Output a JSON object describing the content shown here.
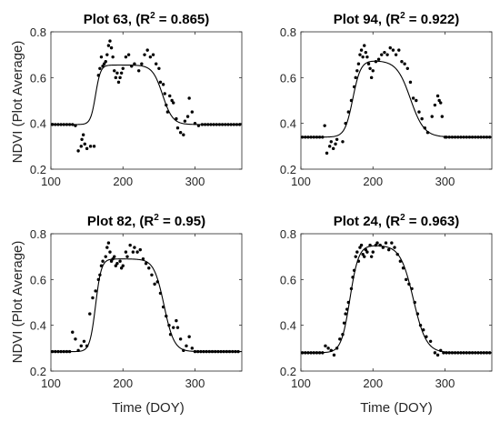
{
  "figure": {
    "shared_ylabel": "NDVI (Plot Average)",
    "shared_xlabel": "Time (DOY)"
  },
  "chart_data": [
    {
      "type": "scatter",
      "title_prefix": "Plot 63, (R",
      "title_sup": "2",
      "title_suffix": " = 0.865)",
      "xlabel": "Time (DOY)",
      "ylabel": "NDVI (Plot Average)",
      "xlim": [
        100,
        365
      ],
      "ylim": [
        0.2,
        0.8
      ],
      "xticks": [
        100,
        200,
        300
      ],
      "yticks": [
        0.2,
        0.4,
        0.6,
        0.8
      ],
      "xtick_labels": [
        "100",
        "200",
        "300"
      ],
      "ytick_labels": [
        "0.2",
        "0.4",
        "0.6",
        "0.8"
      ],
      "grid": false,
      "fit": {
        "base": 0.395,
        "plateau": 0.655,
        "green_up_doy": 162,
        "rise_width": 3.5,
        "senescence_doy": 255,
        "fall_width": 7
      },
      "points": [
        [
          102,
          0.395
        ],
        [
          106,
          0.395
        ],
        [
          110,
          0.395
        ],
        [
          114,
          0.395
        ],
        [
          118,
          0.395
        ],
        [
          122,
          0.395
        ],
        [
          126,
          0.395
        ],
        [
          130,
          0.395
        ],
        [
          134,
          0.39
        ],
        [
          138,
          0.28
        ],
        [
          142,
          0.3
        ],
        [
          143,
          0.33
        ],
        [
          145,
          0.35
        ],
        [
          147,
          0.31
        ],
        [
          150,
          0.29
        ],
        [
          155,
          0.3
        ],
        [
          160,
          0.3
        ],
        [
          166,
          0.61
        ],
        [
          168,
          0.64
        ],
        [
          170,
          0.69
        ],
        [
          172,
          0.65
        ],
        [
          174,
          0.66
        ],
        [
          176,
          0.67
        ],
        [
          178,
          0.7
        ],
        [
          180,
          0.74
        ],
        [
          182,
          0.76
        ],
        [
          184,
          0.73
        ],
        [
          186,
          0.69
        ],
        [
          188,
          0.63
        ],
        [
          190,
          0.6
        ],
        [
          192,
          0.62
        ],
        [
          194,
          0.58
        ],
        [
          196,
          0.6
        ],
        [
          198,
          0.62
        ],
        [
          200,
          0.64
        ],
        [
          204,
          0.69
        ],
        [
          208,
          0.7
        ],
        [
          212,
          0.65
        ],
        [
          216,
          0.66
        ],
        [
          222,
          0.63
        ],
        [
          226,
          0.66
        ],
        [
          230,
          0.7
        ],
        [
          234,
          0.72
        ],
        [
          238,
          0.69
        ],
        [
          242,
          0.7
        ],
        [
          246,
          0.66
        ],
        [
          250,
          0.64
        ],
        [
          252,
          0.58
        ],
        [
          256,
          0.57
        ],
        [
          258,
          0.53
        ],
        [
          260,
          0.48
        ],
        [
          262,
          0.45
        ],
        [
          265,
          0.52
        ],
        [
          268,
          0.5
        ],
        [
          270,
          0.49
        ],
        [
          274,
          0.42
        ],
        [
          276,
          0.38
        ],
        [
          280,
          0.36
        ],
        [
          284,
          0.35
        ],
        [
          286,
          0.41
        ],
        [
          290,
          0.43
        ],
        [
          292,
          0.51
        ],
        [
          296,
          0.45
        ],
        [
          300,
          0.4
        ],
        [
          305,
          0.39
        ],
        [
          310,
          0.395
        ],
        [
          314,
          0.395
        ],
        [
          318,
          0.395
        ],
        [
          322,
          0.395
        ],
        [
          326,
          0.395
        ],
        [
          330,
          0.395
        ],
        [
          334,
          0.395
        ],
        [
          338,
          0.395
        ],
        [
          342,
          0.395
        ],
        [
          346,
          0.395
        ],
        [
          350,
          0.395
        ],
        [
          354,
          0.395
        ],
        [
          358,
          0.395
        ],
        [
          362,
          0.395
        ]
      ]
    },
    {
      "type": "scatter",
      "title_prefix": "Plot 94, (R",
      "title_sup": "2",
      "title_suffix": " = 0.922)",
      "xlabel": "Time (DOY)",
      "ylabel": "NDVI (Plot Average)",
      "xlim": [
        100,
        365
      ],
      "ylim": [
        0.2,
        0.8
      ],
      "xticks": [
        100,
        200,
        300
      ],
      "yticks": [
        0.2,
        0.4,
        0.6,
        0.8
      ],
      "xtick_labels": [
        "100",
        "200",
        "300"
      ],
      "ytick_labels": [
        "0.2",
        "0.4",
        "0.6",
        "0.8"
      ],
      "grid": false,
      "fit": {
        "base": 0.34,
        "plateau": 0.675,
        "green_up_doy": 172,
        "rise_width": 5.5,
        "senescence_doy": 252,
        "fall_width": 9.5
      },
      "points": [
        [
          102,
          0.34
        ],
        [
          106,
          0.34
        ],
        [
          110,
          0.34
        ],
        [
          114,
          0.34
        ],
        [
          118,
          0.34
        ],
        [
          122,
          0.34
        ],
        [
          126,
          0.34
        ],
        [
          130,
          0.34
        ],
        [
          133,
          0.39
        ],
        [
          136,
          0.27
        ],
        [
          140,
          0.3
        ],
        [
          142,
          0.32
        ],
        [
          145,
          0.29
        ],
        [
          148,
          0.31
        ],
        [
          150,
          0.33
        ],
        [
          158,
          0.32
        ],
        [
          162,
          0.4
        ],
        [
          166,
          0.45
        ],
        [
          170,
          0.5
        ],
        [
          174,
          0.56
        ],
        [
          176,
          0.6
        ],
        [
          178,
          0.63
        ],
        [
          180,
          0.66
        ],
        [
          182,
          0.7
        ],
        [
          184,
          0.72
        ],
        [
          186,
          0.69
        ],
        [
          188,
          0.74
        ],
        [
          190,
          0.71
        ],
        [
          192,
          0.69
        ],
        [
          194,
          0.66
        ],
        [
          196,
          0.64
        ],
        [
          198,
          0.6
        ],
        [
          200,
          0.63
        ],
        [
          204,
          0.67
        ],
        [
          208,
          0.68
        ],
        [
          212,
          0.7
        ],
        [
          216,
          0.71
        ],
        [
          220,
          0.7
        ],
        [
          224,
          0.73
        ],
        [
          228,
          0.72
        ],
        [
          232,
          0.7
        ],
        [
          236,
          0.72
        ],
        [
          240,
          0.67
        ],
        [
          244,
          0.66
        ],
        [
          248,
          0.64
        ],
        [
          252,
          0.58
        ],
        [
          256,
          0.51
        ],
        [
          260,
          0.5
        ],
        [
          264,
          0.45
        ],
        [
          268,
          0.42
        ],
        [
          272,
          0.38
        ],
        [
          276,
          0.36
        ],
        [
          282,
          0.43
        ],
        [
          286,
          0.48
        ],
        [
          290,
          0.52
        ],
        [
          292,
          0.5
        ],
        [
          294,
          0.49
        ],
        [
          296,
          0.43
        ],
        [
          300,
          0.34
        ],
        [
          302,
          0.34
        ],
        [
          306,
          0.34
        ],
        [
          310,
          0.34
        ],
        [
          314,
          0.34
        ],
        [
          318,
          0.34
        ],
        [
          322,
          0.34
        ],
        [
          326,
          0.34
        ],
        [
          330,
          0.34
        ],
        [
          334,
          0.34
        ],
        [
          338,
          0.34
        ],
        [
          342,
          0.34
        ],
        [
          346,
          0.34
        ],
        [
          350,
          0.34
        ],
        [
          354,
          0.34
        ],
        [
          358,
          0.34
        ],
        [
          362,
          0.34
        ]
      ]
    },
    {
      "type": "scatter",
      "title_prefix": "Plot 82, (R",
      "title_sup": "2",
      "title_suffix": " = 0.95)",
      "xlabel": "Time (DOY)",
      "ylabel": "NDVI (Plot Average)",
      "xlim": [
        100,
        365
      ],
      "ylim": [
        0.2,
        0.8
      ],
      "xticks": [
        100,
        200,
        300
      ],
      "yticks": [
        0.2,
        0.4,
        0.6,
        0.8
      ],
      "xtick_labels": [
        "100",
        "200",
        "300"
      ],
      "ytick_labels": [
        "0.2",
        "0.4",
        "0.6",
        "0.8"
      ],
      "grid": false,
      "fit": {
        "base": 0.285,
        "plateau": 0.69,
        "green_up_doy": 162,
        "rise_width": 4,
        "senescence_doy": 257,
        "fall_width": 7
      },
      "points": [
        [
          102,
          0.285
        ],
        [
          106,
          0.285
        ],
        [
          110,
          0.285
        ],
        [
          114,
          0.285
        ],
        [
          118,
          0.285
        ],
        [
          122,
          0.285
        ],
        [
          126,
          0.285
        ],
        [
          130,
          0.37
        ],
        [
          134,
          0.34
        ],
        [
          138,
          0.29
        ],
        [
          142,
          0.31
        ],
        [
          146,
          0.33
        ],
        [
          150,
          0.31
        ],
        [
          154,
          0.45
        ],
        [
          158,
          0.52
        ],
        [
          162,
          0.55
        ],
        [
          166,
          0.6
        ],
        [
          168,
          0.62
        ],
        [
          170,
          0.66
        ],
        [
          172,
          0.68
        ],
        [
          176,
          0.7
        ],
        [
          178,
          0.74
        ],
        [
          180,
          0.76
        ],
        [
          182,
          0.72
        ],
        [
          184,
          0.68
        ],
        [
          186,
          0.69
        ],
        [
          188,
          0.7
        ],
        [
          190,
          0.66
        ],
        [
          192,
          0.67
        ],
        [
          196,
          0.68
        ],
        [
          198,
          0.65
        ],
        [
          200,
          0.66
        ],
        [
          204,
          0.72
        ],
        [
          206,
          0.7
        ],
        [
          210,
          0.75
        ],
        [
          214,
          0.72
        ],
        [
          216,
          0.74
        ],
        [
          220,
          0.72
        ],
        [
          224,
          0.73
        ],
        [
          228,
          0.69
        ],
        [
          232,
          0.67
        ],
        [
          236,
          0.65
        ],
        [
          240,
          0.62
        ],
        [
          244,
          0.58
        ],
        [
          248,
          0.59
        ],
        [
          252,
          0.54
        ],
        [
          256,
          0.48
        ],
        [
          260,
          0.44
        ],
        [
          264,
          0.4
        ],
        [
          266,
          0.36
        ],
        [
          270,
          0.39
        ],
        [
          274,
          0.42
        ],
        [
          276,
          0.39
        ],
        [
          280,
          0.34
        ],
        [
          284,
          0.29
        ],
        [
          288,
          0.31
        ],
        [
          292,
          0.35
        ],
        [
          296,
          0.3
        ],
        [
          300,
          0.285
        ],
        [
          304,
          0.285
        ],
        [
          308,
          0.285
        ],
        [
          312,
          0.285
        ],
        [
          316,
          0.285
        ],
        [
          320,
          0.285
        ],
        [
          324,
          0.285
        ],
        [
          328,
          0.285
        ],
        [
          332,
          0.285
        ],
        [
          336,
          0.285
        ],
        [
          340,
          0.285
        ],
        [
          344,
          0.285
        ],
        [
          348,
          0.285
        ],
        [
          352,
          0.285
        ],
        [
          356,
          0.285
        ],
        [
          360,
          0.285
        ]
      ]
    },
    {
      "type": "scatter",
      "title_prefix": "Plot 24, (R",
      "title_sup": "2",
      "title_suffix": " = 0.963)",
      "xlabel": "Time (DOY)",
      "ylabel": "NDVI (Plot Average)",
      "xlim": [
        100,
        365
      ],
      "ylim": [
        0.2,
        0.8
      ],
      "xticks": [
        100,
        200,
        300
      ],
      "yticks": [
        0.2,
        0.4,
        0.6,
        0.8
      ],
      "xtick_labels": [
        "100",
        "200",
        "300"
      ],
      "ytick_labels": [
        "0.2",
        "0.4",
        "0.6",
        "0.8"
      ],
      "grid": false,
      "fit": {
        "base": 0.28,
        "plateau": 0.75,
        "green_up_doy": 168,
        "rise_width": 6,
        "senescence_doy": 256,
        "fall_width": 9
      },
      "points": [
        [
          102,
          0.28
        ],
        [
          106,
          0.28
        ],
        [
          110,
          0.28
        ],
        [
          114,
          0.28
        ],
        [
          118,
          0.28
        ],
        [
          122,
          0.28
        ],
        [
          126,
          0.28
        ],
        [
          130,
          0.28
        ],
        [
          134,
          0.31
        ],
        [
          138,
          0.3
        ],
        [
          142,
          0.29
        ],
        [
          146,
          0.27
        ],
        [
          150,
          0.3
        ],
        [
          154,
          0.34
        ],
        [
          158,
          0.36
        ],
        [
          160,
          0.41
        ],
        [
          162,
          0.45
        ],
        [
          164,
          0.47
        ],
        [
          166,
          0.5
        ],
        [
          170,
          0.56
        ],
        [
          172,
          0.61
        ],
        [
          174,
          0.64
        ],
        [
          176,
          0.7
        ],
        [
          178,
          0.72
        ],
        [
          180,
          0.68
        ],
        [
          182,
          0.74
        ],
        [
          184,
          0.75
        ],
        [
          186,
          0.71
        ],
        [
          188,
          0.7
        ],
        [
          190,
          0.73
        ],
        [
          192,
          0.72
        ],
        [
          196,
          0.75
        ],
        [
          198,
          0.7
        ],
        [
          200,
          0.72
        ],
        [
          204,
          0.75
        ],
        [
          206,
          0.76
        ],
        [
          210,
          0.75
        ],
        [
          214,
          0.74
        ],
        [
          218,
          0.76
        ],
        [
          222,
          0.73
        ],
        [
          226,
          0.76
        ],
        [
          230,
          0.74
        ],
        [
          234,
          0.71
        ],
        [
          238,
          0.68
        ],
        [
          242,
          0.65
        ],
        [
          246,
          0.6
        ],
        [
          250,
          0.58
        ],
        [
          254,
          0.56
        ],
        [
          258,
          0.5
        ],
        [
          262,
          0.45
        ],
        [
          266,
          0.4
        ],
        [
          270,
          0.38
        ],
        [
          274,
          0.35
        ],
        [
          280,
          0.33
        ],
        [
          286,
          0.28
        ],
        [
          290,
          0.27
        ],
        [
          294,
          0.29
        ],
        [
          298,
          0.28
        ],
        [
          302,
          0.28
        ],
        [
          306,
          0.28
        ],
        [
          310,
          0.28
        ],
        [
          314,
          0.28
        ],
        [
          318,
          0.28
        ],
        [
          322,
          0.28
        ],
        [
          326,
          0.28
        ],
        [
          330,
          0.28
        ],
        [
          334,
          0.28
        ],
        [
          338,
          0.28
        ],
        [
          342,
          0.28
        ],
        [
          346,
          0.28
        ],
        [
          350,
          0.28
        ],
        [
          354,
          0.28
        ],
        [
          358,
          0.28
        ],
        [
          362,
          0.28
        ]
      ]
    }
  ]
}
